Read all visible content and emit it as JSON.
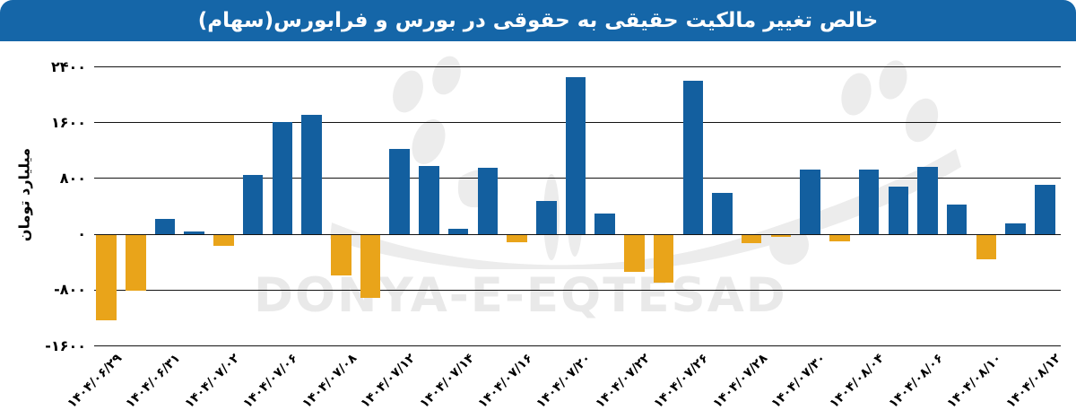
{
  "header": {
    "title": "خالص تغییر مالکیت حقیقی به حقوقی در بورس و فرابورس(سهام)",
    "bg_color": "#1566a8",
    "text_color": "#ffffff"
  },
  "watermark": {
    "latin": "DONYA-E-EQTESAD",
    "color": "#e9e9e9"
  },
  "chart_data": {
    "type": "bar",
    "title": "خالص تغییر مالکیت حقیقی به حقوقی در بورس و فرابورس(سهام)",
    "xlabel": "",
    "ylabel": "میلیارد تومان",
    "ylim": [
      -1600,
      2400
    ],
    "grid": true,
    "gridline_color": "#141414",
    "positive_color": "#135f9f",
    "negative_color": "#e9a41a",
    "yticks": [
      2400,
      1600,
      800,
      0,
      -800,
      -1600
    ],
    "ytick_labels": [
      "۲۴۰۰",
      "۱۶۰۰",
      "۸۰۰",
      "۰",
      "-۸۰۰",
      "-۱۶۰۰"
    ],
    "points": [
      {
        "label": "۱۴۰۴/۰۶/۲۹",
        "value": -1240
      },
      {
        "label": "",
        "value": -820
      },
      {
        "label": "۱۴۰۴/۰۶/۳۱",
        "value": 210
      },
      {
        "label": "",
        "value": 30
      },
      {
        "label": "۱۴۰۴/۰۷/۰۲",
        "value": -170
      },
      {
        "label": "",
        "value": 840
      },
      {
        "label": "۱۴۰۴/۰۷/۰۶",
        "value": 1600
      },
      {
        "label": "",
        "value": 1700
      },
      {
        "label": "۱۴۰۴/۰۷/۰۸",
        "value": -600
      },
      {
        "label": "",
        "value": -925
      },
      {
        "label": "۱۴۰۴/۰۷/۱۲",
        "value": 1215
      },
      {
        "label": "",
        "value": 970
      },
      {
        "label": "۱۴۰۴/۰۷/۱۴",
        "value": 70
      },
      {
        "label": "",
        "value": 945
      },
      {
        "label": "۱۴۰۴/۰۷/۱۶",
        "value": -120
      },
      {
        "label": "",
        "value": 465
      },
      {
        "label": "۱۴۰۴/۰۷/۲۰",
        "value": 2240
      },
      {
        "label": "",
        "value": 290
      },
      {
        "label": "۱۴۰۴/۰۷/۲۲",
        "value": -540
      },
      {
        "label": "",
        "value": -700
      },
      {
        "label": "۱۴۰۴/۰۷/۲۶",
        "value": 2200
      },
      {
        "label": "",
        "value": 590
      },
      {
        "label": "۱۴۰۴/۰۷/۲۸",
        "value": -130
      },
      {
        "label": "",
        "value": -40
      },
      {
        "label": "۱۴۰۴/۰۷/۳۰",
        "value": 920
      },
      {
        "label": "",
        "value": -110
      },
      {
        "label": "۱۴۰۴/۰۸/۰۴",
        "value": 920
      },
      {
        "label": "",
        "value": 675
      },
      {
        "label": "۱۴۰۴/۰۸/۰۶",
        "value": 955
      },
      {
        "label": "",
        "value": 415
      },
      {
        "label": "۱۴۰۴/۰۸/۱۰",
        "value": -370
      },
      {
        "label": "",
        "value": 155
      },
      {
        "label": "۱۴۰۴/۰۸/۱۲",
        "value": 700
      }
    ]
  }
}
